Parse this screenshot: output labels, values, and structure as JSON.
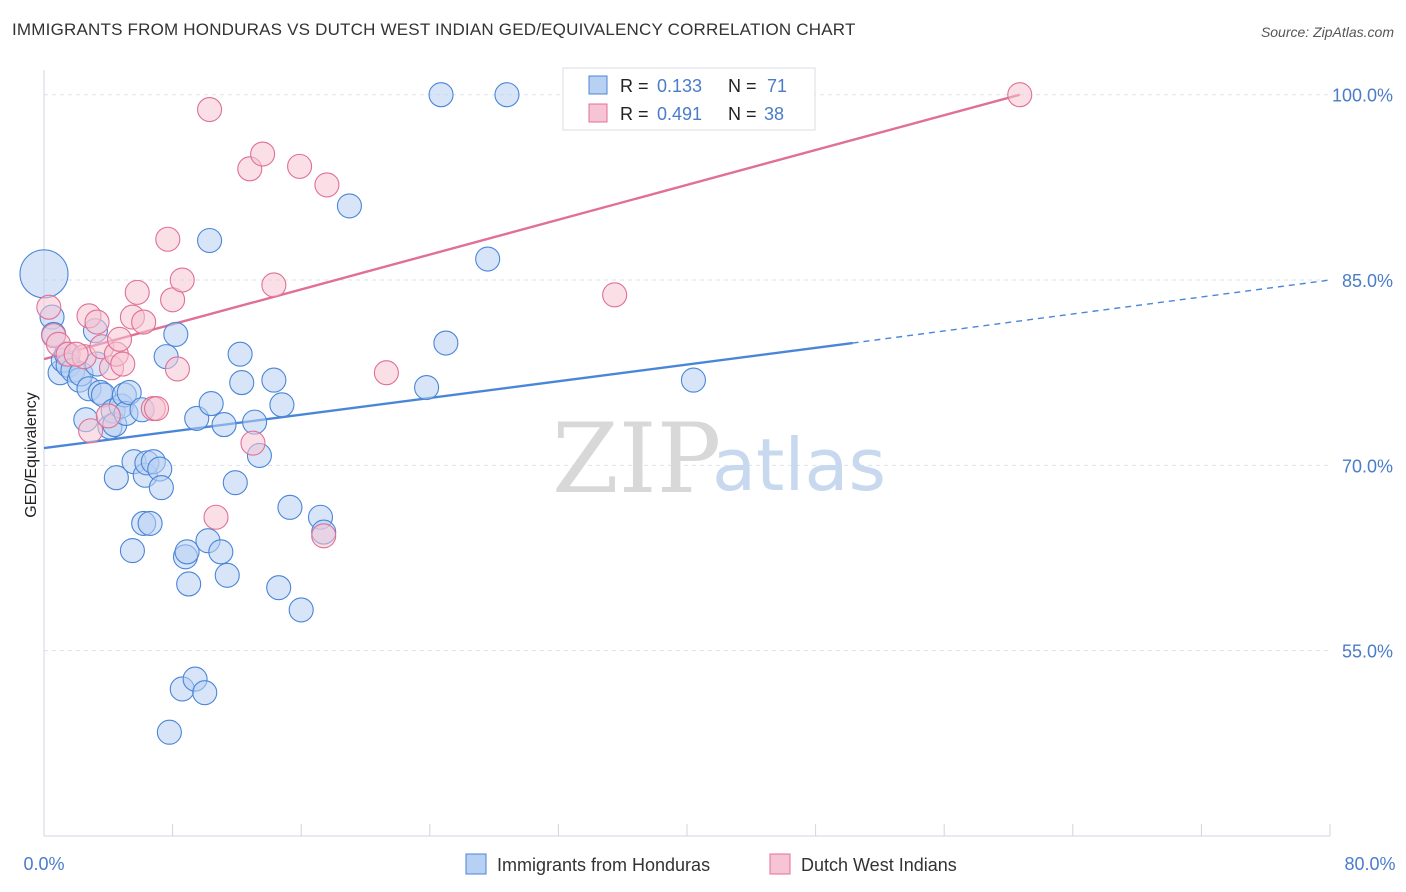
{
  "header": {
    "title": "IMMIGRANTS FROM HONDURAS VS DUTCH WEST INDIAN GED/EQUIVALENCY CORRELATION CHART",
    "source": "Source: ZipAtlas.com"
  },
  "watermark": {
    "zip": "ZIP",
    "atlas": "atlas"
  },
  "colors": {
    "blue": "#4a86d8",
    "blue_fill": "#b8d0f2",
    "pink": "#e07096",
    "pink_fill": "#f6c4d4",
    "axis_text": "#4a7cc9",
    "grid": "#dde3ea"
  },
  "legend_stats": {
    "blue": {
      "r_label": "R =",
      "r_value": "0.133",
      "n_label": "N =",
      "n_value": "71"
    },
    "pink": {
      "r_label": "R =",
      "r_value": "0.491",
      "n_label": "N =",
      "n_value": "38"
    }
  },
  "chart_data": {
    "type": "scatter",
    "title": "IMMIGRANTS FROM HONDURAS VS DUTCH WEST INDIAN GED/EQUIVALENCY CORRELATION CHART",
    "xlabel": "",
    "ylabel": "GED/Equivalency",
    "xlim": [
      0,
      80
    ],
    "ylim": [
      40,
      102
    ],
    "x_tick_labels": [
      "0.0%",
      "80.0%"
    ],
    "y_ticks": [
      55,
      70,
      85,
      100
    ],
    "y_tick_labels": [
      "55.0%",
      "70.0%",
      "85.0%",
      "100.0%"
    ],
    "grid": true,
    "legend_position": "bottom-center",
    "series": [
      {
        "name": "Immigrants from Honduras",
        "color": "#4a86d8",
        "trend": {
          "x": [
            0,
            50.3
          ],
          "y": [
            71.4,
            79.9
          ],
          "dashed_to": [
            80,
            85
          ]
        },
        "points": [
          [
            0,
            85.5,
            24
          ],
          [
            0.5,
            82,
            12
          ],
          [
            0.6,
            80.6,
            12
          ],
          [
            1,
            77.5,
            12
          ],
          [
            1.2,
            78.5,
            12
          ],
          [
            1.4,
            79,
            12
          ],
          [
            1.5,
            78.1,
            12
          ],
          [
            1.8,
            77.7,
            12
          ],
          [
            2.2,
            76.9,
            12
          ],
          [
            2.3,
            77.4,
            12
          ],
          [
            2.6,
            73.7,
            12
          ],
          [
            2.8,
            76.2,
            12
          ],
          [
            3.2,
            80.9,
            12
          ],
          [
            3.3,
            78.2,
            12
          ],
          [
            3.5,
            75.9,
            12
          ],
          [
            3.7,
            75.7,
            12
          ],
          [
            4.1,
            73.1,
            12
          ],
          [
            4.3,
            74.4,
            12
          ],
          [
            4.4,
            73.3,
            12
          ],
          [
            4.5,
            69,
            12
          ],
          [
            4.8,
            74.8,
            12
          ],
          [
            5,
            75.7,
            12
          ],
          [
            5.1,
            74.2,
            12
          ],
          [
            5.3,
            75.9,
            12
          ],
          [
            5.5,
            63.1,
            12
          ],
          [
            5.6,
            70.3,
            12
          ],
          [
            6.1,
            74.5,
            12
          ],
          [
            6.2,
            65.3,
            12
          ],
          [
            6.3,
            69.2,
            12
          ],
          [
            6.4,
            70.2,
            12
          ],
          [
            6.6,
            65.3,
            12
          ],
          [
            6.8,
            70.3,
            12
          ],
          [
            7.2,
            69.7,
            12
          ],
          [
            7.3,
            68.2,
            12
          ],
          [
            7.6,
            78.8,
            12
          ],
          [
            8.2,
            80.6,
            12
          ],
          [
            8.6,
            51.9,
            12
          ],
          [
            8.8,
            62.6,
            12
          ],
          [
            8.9,
            63.0,
            12
          ],
          [
            9,
            60.4,
            12
          ],
          [
            9.4,
            52.7,
            12
          ],
          [
            9.5,
            73.8,
            12
          ],
          [
            10,
            51.6,
            12
          ],
          [
            10.2,
            63.9,
            12
          ],
          [
            10.3,
            88.2,
            12
          ],
          [
            10.4,
            75.0,
            12
          ],
          [
            11,
            63.0,
            12
          ],
          [
            11.2,
            73.3,
            12
          ],
          [
            11.4,
            61.1,
            12
          ],
          [
            11.9,
            68.6,
            12
          ],
          [
            12.2,
            79.0,
            12
          ],
          [
            12.3,
            76.7,
            12
          ],
          [
            13.1,
            73.5,
            12
          ],
          [
            13.4,
            70.8,
            12
          ],
          [
            14.3,
            76.9,
            12
          ],
          [
            14.6,
            60.1,
            12
          ],
          [
            14.8,
            74.9,
            12
          ],
          [
            15.3,
            66.6,
            12
          ],
          [
            16,
            58.3,
            12
          ],
          [
            17.2,
            65.8,
            12
          ],
          [
            17.4,
            64.6,
            12
          ],
          [
            19,
            91.0,
            12
          ],
          [
            23.8,
            76.3,
            12
          ],
          [
            25,
            79.9,
            12
          ],
          [
            24.7,
            100,
            12
          ],
          [
            27.6,
            86.7,
            12
          ],
          [
            28.8,
            100,
            12
          ],
          [
            40.4,
            76.9,
            12
          ],
          [
            7.8,
            48.4,
            12
          ]
        ]
      },
      {
        "name": "Dutch West Indians",
        "color": "#e07096",
        "trend": {
          "x": [
            0,
            60.7
          ],
          "y": [
            78.6,
            100.0
          ]
        },
        "points": [
          [
            0.3,
            82.8,
            12
          ],
          [
            0.6,
            80.5,
            12
          ],
          [
            0.9,
            79.8,
            12
          ],
          [
            1.5,
            79.0,
            12
          ],
          [
            2.5,
            78.8,
            12
          ],
          [
            2.8,
            82.1,
            12
          ],
          [
            2.9,
            72.8,
            12
          ],
          [
            3.3,
            81.6,
            12
          ],
          [
            3.6,
            79.6,
            12
          ],
          [
            4.0,
            74.0,
            12
          ],
          [
            4.2,
            77.9,
            12
          ],
          [
            4.5,
            79.0,
            12
          ],
          [
            4.7,
            80.2,
            12
          ],
          [
            4.9,
            78.2,
            12
          ],
          [
            5.5,
            82.0,
            12
          ],
          [
            5.8,
            84.0,
            12
          ],
          [
            6.2,
            81.6,
            12
          ],
          [
            6.8,
            74.6,
            12
          ],
          [
            7.7,
            88.3,
            12
          ],
          [
            8.0,
            83.4,
            12
          ],
          [
            8.3,
            77.8,
            12
          ],
          [
            8.6,
            85.0,
            12
          ],
          [
            10.3,
            98.8,
            12
          ],
          [
            10.7,
            65.8,
            12
          ],
          [
            12.8,
            94.0,
            12
          ],
          [
            13.0,
            71.8,
            12
          ],
          [
            13.6,
            95.2,
            12
          ],
          [
            14.3,
            84.6,
            12
          ],
          [
            15.9,
            94.2,
            12
          ],
          [
            17.4,
            64.3,
            12
          ],
          [
            17.6,
            92.7,
            12
          ],
          [
            21.3,
            77.5,
            12
          ],
          [
            35.5,
            83.8,
            12
          ],
          [
            60.7,
            100.0,
            12
          ],
          [
            7.0,
            74.6,
            12
          ],
          [
            2.0,
            79.0,
            12
          ]
        ]
      }
    ]
  }
}
